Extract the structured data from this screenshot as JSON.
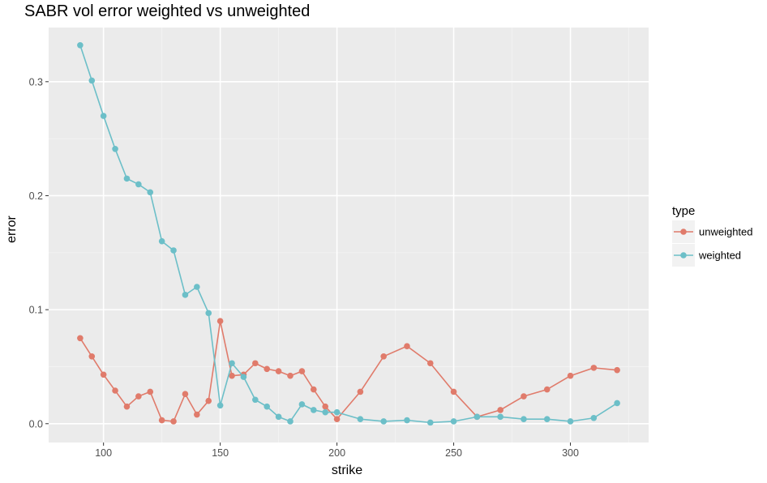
{
  "chart_data": {
    "type": "line",
    "title": "SABR vol error weighted vs unweighted",
    "xlabel": "strike",
    "ylabel": "error",
    "xlim": [
      76.5,
      333.5
    ],
    "ylim": [
      -0.0165,
      0.3475
    ],
    "x_ticks": [
      100,
      150,
      200,
      250,
      300
    ],
    "x_tick_labels": [
      "100",
      "150",
      "200",
      "250",
      "300"
    ],
    "y_ticks": [
      0.0,
      0.1,
      0.2,
      0.3
    ],
    "y_tick_labels": [
      "0.0",
      "0.1",
      "0.2",
      "0.3"
    ],
    "grid": true,
    "legend": {
      "title": "type",
      "position": "right"
    },
    "colors": {
      "panel": "#ebebeb",
      "grid_major": "#ffffff",
      "grid_minor": "#f4f4f4"
    },
    "series": [
      {
        "name": "unweighted",
        "color": "#e07b6b",
        "x": [
          90,
          95,
          100,
          105,
          110,
          115,
          120,
          125,
          130,
          135,
          140,
          145,
          150,
          155,
          160,
          165,
          170,
          175,
          180,
          185,
          190,
          195,
          200,
          210,
          220,
          230,
          240,
          250,
          260,
          270,
          280,
          290,
          300,
          310,
          320
        ],
        "y": [
          0.075,
          0.059,
          0.043,
          0.029,
          0.015,
          0.024,
          0.028,
          0.003,
          0.002,
          0.026,
          0.008,
          0.02,
          0.09,
          0.042,
          0.043,
          0.053,
          0.048,
          0.046,
          0.042,
          0.046,
          0.03,
          0.015,
          0.004,
          0.028,
          0.059,
          0.068,
          0.053,
          0.028,
          0.006,
          0.012,
          0.024,
          0.03,
          0.042,
          0.049,
          0.047
        ]
      },
      {
        "name": "weighted",
        "color": "#6cbfc8",
        "x": [
          90,
          95,
          100,
          105,
          110,
          115,
          120,
          125,
          130,
          135,
          140,
          145,
          150,
          155,
          160,
          165,
          170,
          175,
          180,
          185,
          190,
          195,
          200,
          210,
          220,
          230,
          240,
          250,
          260,
          270,
          280,
          290,
          300,
          310,
          320
        ],
        "y": [
          0.332,
          0.301,
          0.27,
          0.241,
          0.215,
          0.21,
          0.203,
          0.16,
          0.152,
          0.113,
          0.12,
          0.097,
          0.016,
          0.053,
          0.041,
          0.021,
          0.015,
          0.006,
          0.002,
          0.017,
          0.012,
          0.01,
          0.01,
          0.004,
          0.002,
          0.003,
          0.001,
          0.002,
          0.006,
          0.006,
          0.004,
          0.004,
          0.002,
          0.005,
          0.018
        ]
      }
    ]
  }
}
